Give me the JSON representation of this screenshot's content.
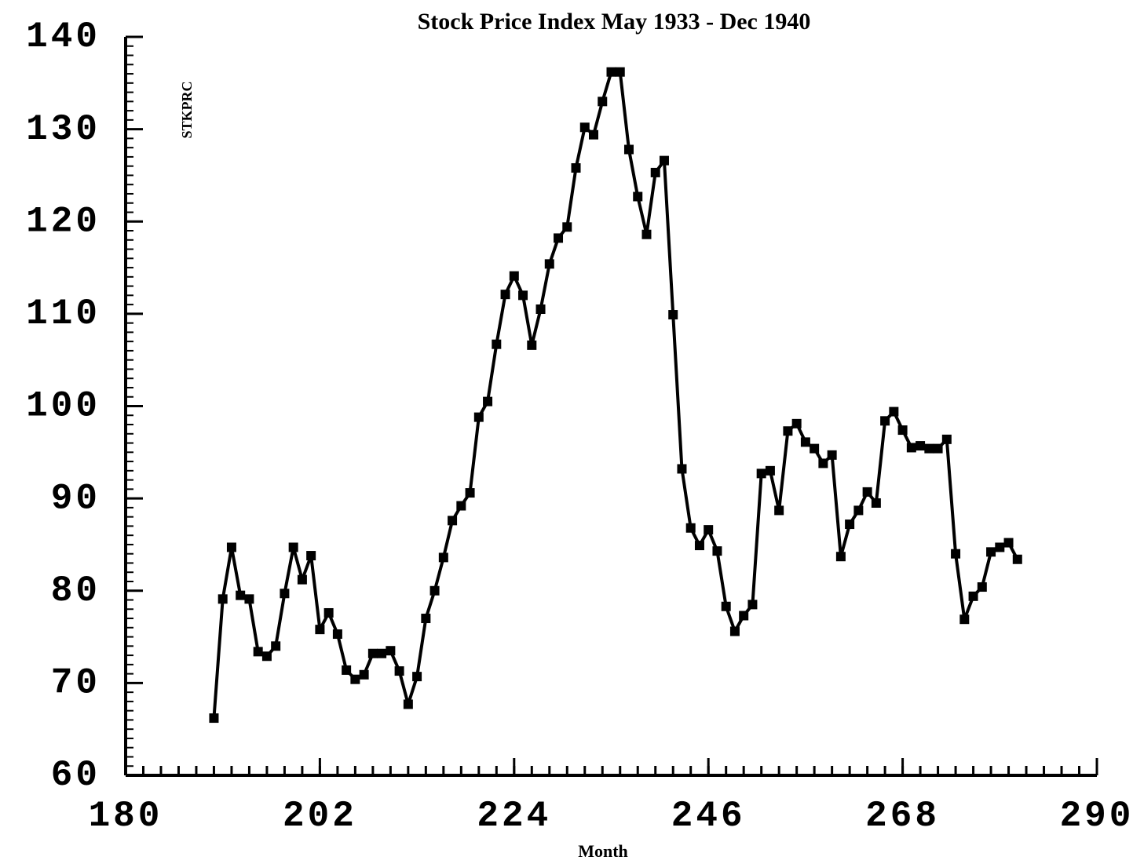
{
  "chart_data": {
    "type": "line",
    "title": "Stock Price Index May 1933 - Dec 1940",
    "x_label": "Month",
    "y_label": "STKPRC",
    "x": [
      190,
      191,
      192,
      193,
      194,
      195,
      196,
      197,
      198,
      199,
      200,
      201,
      202,
      203,
      204,
      205,
      206,
      207,
      208,
      209,
      210,
      211,
      212,
      213,
      214,
      215,
      216,
      217,
      218,
      219,
      220,
      221,
      222,
      223,
      224,
      225,
      226,
      227,
      228,
      229,
      230,
      231,
      232,
      233,
      234,
      235,
      236,
      237,
      238,
      239,
      240,
      241,
      242,
      243,
      244,
      245,
      246,
      247,
      248,
      249,
      250,
      251,
      252,
      253,
      254,
      255,
      256,
      257,
      258,
      259,
      260,
      261,
      262,
      263,
      264,
      265,
      266,
      267,
      268,
      269,
      270,
      271,
      272,
      273,
      274,
      275,
      276,
      277,
      278,
      279,
      280,
      281
    ],
    "series": [
      {
        "name": "STKPRC",
        "color": "#000000",
        "values": [
          66.2,
          79.1,
          84.7,
          79.5,
          79.1,
          73.4,
          72.9,
          74.0,
          79.7,
          84.7,
          81.2,
          83.8,
          75.8,
          77.6,
          75.3,
          71.4,
          70.4,
          70.9,
          73.2,
          73.2,
          73.5,
          71.3,
          67.7,
          70.7,
          77.0,
          80.0,
          83.6,
          87.6,
          89.2,
          90.6,
          98.8,
          100.5,
          106.7,
          112.1,
          114.1,
          112.0,
          106.6,
          110.5,
          115.4,
          118.2,
          119.4,
          125.8,
          130.2,
          129.4,
          133.0,
          136.2,
          136.2,
          127.8,
          122.7,
          118.6,
          125.3,
          126.6,
          109.9,
          93.2,
          86.8,
          84.9,
          86.6,
          84.3,
          78.3,
          75.6,
          77.3,
          78.5,
          92.7,
          93.0,
          88.7,
          97.3,
          98.1,
          96.1,
          95.4,
          93.8,
          94.7,
          83.7,
          87.2,
          88.7,
          90.7,
          89.5,
          98.4,
          99.4,
          97.4,
          95.5,
          95.7,
          95.4,
          95.4,
          96.4,
          84.0,
          76.9,
          79.4,
          80.4,
          84.2,
          84.7,
          85.2,
          83.4
        ]
      }
    ],
    "xlim": [
      180,
      290
    ],
    "xticks": [
      180,
      202,
      224,
      246,
      268,
      290
    ],
    "ylim": [
      60,
      140
    ],
    "yticks": [
      60,
      70,
      80,
      90,
      100,
      110,
      120,
      130,
      140
    ],
    "grid": false
  }
}
